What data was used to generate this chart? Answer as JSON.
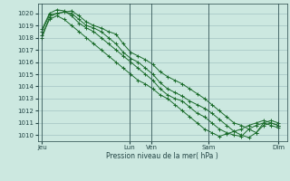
{
  "background_color": "#cce8e0",
  "grid_color": "#99bbbb",
  "line_color": "#1a6b2a",
  "marker_color": "#1a6b2a",
  "xlabel_text": "Pression niveau de la mer( hPa )",
  "yticks": [
    1010,
    1011,
    1012,
    1013,
    1014,
    1015,
    1016,
    1017,
    1018,
    1019,
    1020
  ],
  "ylim": [
    1009.5,
    1020.8
  ],
  "xtick_labels": [
    "Jeu",
    "Lun",
    "Ven",
    "Sam",
    "Dim"
  ],
  "xtick_positions": [
    0,
    20,
    25,
    38,
    54
  ],
  "vlines_x": [
    0,
    20,
    25,
    38,
    54
  ],
  "series": [
    [
      1018.0,
      1019.7,
      1020.0,
      1020.1,
      1020.2,
      1019.8,
      1019.3,
      1019.0,
      1018.8,
      1018.5,
      1018.3,
      1017.5,
      1016.8,
      1016.5,
      1016.2,
      1015.8,
      1015.2,
      1014.8,
      1014.5,
      1014.2,
      1013.8,
      1013.4,
      1013.0,
      1012.5,
      1012.0,
      1011.5,
      1011.0,
      1010.8,
      1010.5,
      1010.2,
      1010.8,
      1011.0,
      1010.8
    ],
    [
      1018.5,
      1019.9,
      1020.0,
      1020.1,
      1020.0,
      1019.5,
      1019.0,
      1018.8,
      1018.5,
      1018.0,
      1017.5,
      1016.8,
      1016.3,
      1016.0,
      1015.5,
      1015.0,
      1014.3,
      1013.8,
      1013.5,
      1013.2,
      1012.8,
      1012.5,
      1012.2,
      1011.8,
      1011.3,
      1010.8,
      1010.3,
      1010.0,
      1009.8,
      1010.2,
      1011.0,
      1011.2,
      1011.0
    ],
    [
      1018.7,
      1020.0,
      1020.3,
      1020.2,
      1019.8,
      1019.2,
      1018.8,
      1018.5,
      1018.0,
      1017.5,
      1017.0,
      1016.5,
      1016.0,
      1015.5,
      1015.0,
      1014.5,
      1013.8,
      1013.3,
      1013.0,
      1012.8,
      1012.3,
      1011.8,
      1011.5,
      1011.0,
      1010.5,
      1010.2,
      1010.0,
      1009.9,
      1010.5,
      1010.8,
      1011.0,
      1010.8,
      1010.6
    ],
    [
      1018.2,
      1019.5,
      1019.8,
      1019.5,
      1019.0,
      1018.5,
      1018.0,
      1017.5,
      1017.0,
      1016.5,
      1016.0,
      1015.5,
      1015.0,
      1014.5,
      1014.2,
      1013.8,
      1013.3,
      1013.0,
      1012.5,
      1012.0,
      1011.5,
      1011.0,
      1010.5,
      1010.2,
      1009.9,
      1010.1,
      1010.3,
      1010.5,
      1010.8,
      1011.0,
      1011.2,
      1011.0,
      1010.8
    ]
  ],
  "n_x_total": 54
}
